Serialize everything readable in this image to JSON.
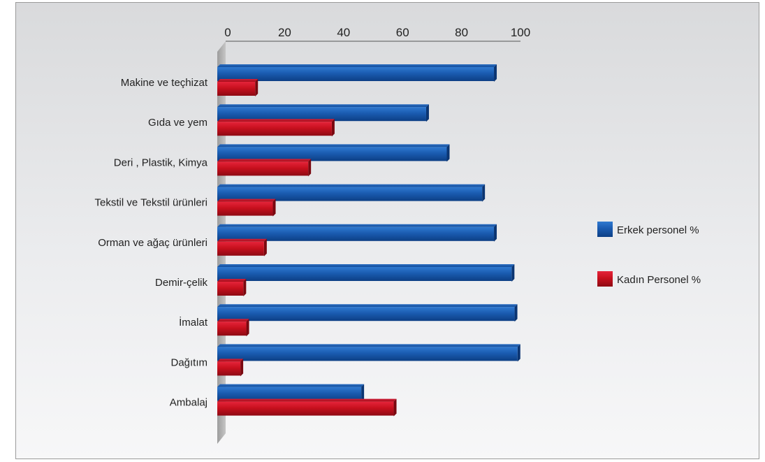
{
  "chart_data": {
    "type": "bar",
    "orientation": "horizontal",
    "categories": [
      "Makine ve teçhizat",
      "Gıda ve yem",
      "Deri , Plastik, Kimya",
      "Tekstil ve Tekstil ürünleri",
      "Orman ve ağaç ürünleri",
      "Demir-çelik",
      "İmalat",
      "Dağıtım",
      "Ambalaj"
    ],
    "series": [
      {
        "name": "Erkek personel %",
        "values": [
          91,
          68,
          75,
          87,
          91,
          97,
          98,
          99,
          46
        ],
        "color": "#1a5bb0"
      },
      {
        "name": "Kadın Personel %",
        "values": [
          10,
          36,
          28,
          16,
          13,
          6,
          7,
          5,
          57
        ],
        "color": "#c8101e"
      }
    ],
    "xticks": [
      0,
      20,
      40,
      60,
      80,
      100
    ],
    "xlim": [
      0,
      100
    ],
    "axis_position": "top",
    "legend_position": "right",
    "grid": false,
    "style": "3d"
  }
}
